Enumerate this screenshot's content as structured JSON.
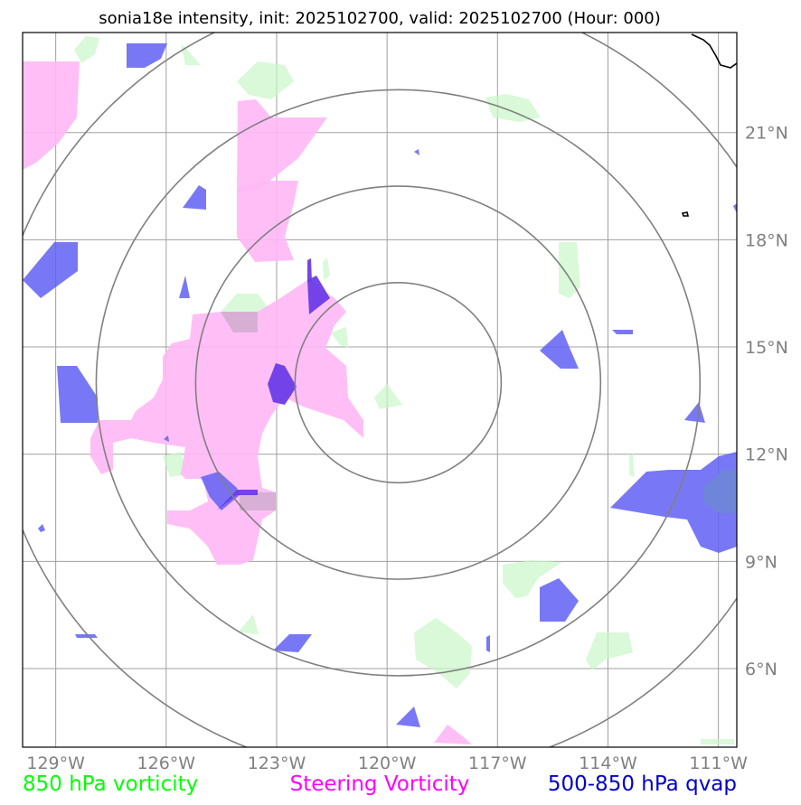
{
  "title": "sonia18e intensity, init: 2025102700, valid: 2025102700 (Hour: 000)",
  "map": {
    "lon_range": [
      -129.9,
      -110.5
    ],
    "lat_range": [
      3.8,
      23.8
    ],
    "storm_center": {
      "lon": -119.7,
      "lat": 14.0
    },
    "longitude_ticks": [
      {
        "value": -129,
        "label": "129°W"
      },
      {
        "value": -126,
        "label": "126°W"
      },
      {
        "value": -123,
        "label": "123°W"
      },
      {
        "value": -120,
        "label": "120°W"
      },
      {
        "value": -117,
        "label": "117°W"
      },
      {
        "value": -114,
        "label": "114°W"
      },
      {
        "value": -111,
        "label": "111°W"
      }
    ],
    "latitude_ticks": [
      {
        "value": 21,
        "label": "21°N"
      },
      {
        "value": 18,
        "label": "18°N"
      },
      {
        "value": 15,
        "label": "15°N"
      },
      {
        "value": 12,
        "label": "12°N"
      },
      {
        "value": 9,
        "label": "9°N"
      },
      {
        "value": 6,
        "label": "6°N"
      }
    ],
    "range_rings_deg": [
      2.8,
      5.5,
      8.2,
      11.0
    ]
  },
  "legend": [
    {
      "label": "850 hPa vorticity",
      "color": "#00ff00"
    },
    {
      "label": "Steering Vorticity",
      "color": "#ff00ff"
    },
    {
      "label": "500-850 hPa qvap",
      "color": "#0000cc"
    }
  ],
  "colors": {
    "green_fill": "#c9f7c9",
    "pink_fill": "#ffb8f5",
    "blue_fill": "#6060f4",
    "purple_fill": "#6c3ce8"
  }
}
